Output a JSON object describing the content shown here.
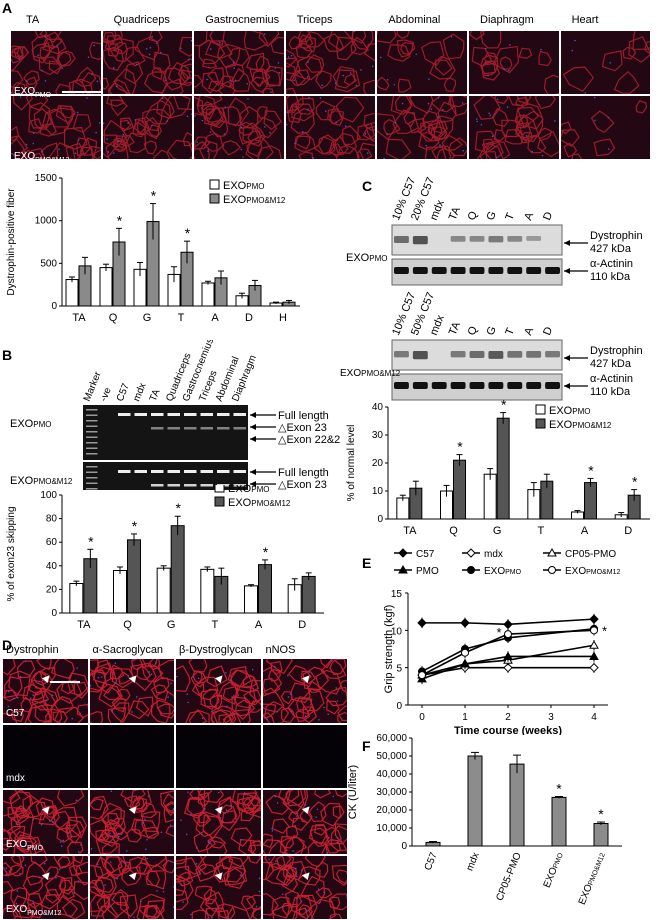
{
  "panelA": {
    "label": "A",
    "columns": [
      "TA",
      "Quadriceps",
      "Gastrocnemius",
      "Triceps",
      "Abdominal",
      "Diaphragm",
      "Heart"
    ],
    "rows": [
      "EXO",
      "EXO"
    ],
    "row_subs": [
      "PMO",
      "PMO&M12"
    ],
    "tile_color": "#9e1c2c",
    "chart_data": {
      "type": "bar",
      "categories": [
        "TA",
        "Q",
        "G",
        "T",
        "A",
        "D",
        "H"
      ],
      "ylabel": "Dystrophin-positive fiber",
      "ylim": [
        0,
        1500
      ],
      "yticks": [
        0,
        500,
        1000,
        1500
      ],
      "series": [
        {
          "name": "EXOPMO",
          "values": [
            310,
            450,
            430,
            370,
            270,
            120,
            35
          ],
          "errors": [
            30,
            40,
            80,
            90,
            20,
            30,
            10
          ],
          "color": "#ffffff"
        },
        {
          "name": "EXOPMO&M12",
          "values": [
            470,
            750,
            990,
            630,
            330,
            240,
            45
          ],
          "errors": [
            100,
            160,
            210,
            130,
            80,
            60,
            20
          ],
          "color": "#8a8a8a"
        }
      ],
      "significance": [
        "",
        "*",
        "*",
        "*",
        "",
        "",
        ""
      ]
    }
  },
  "panelB": {
    "label": "B",
    "lanes": [
      "Marker",
      "-ve",
      "C57",
      "mdx",
      "TA",
      "Quadriceps",
      "Gastrocnemius",
      "Triceps",
      "Abdominal",
      "Diaphragm"
    ],
    "row_labels": [
      "EXO",
      "EXO"
    ],
    "row_subs": [
      "PMO",
      "PMO&M12"
    ],
    "bands_top": [
      "Full length",
      "△Exon 23",
      "△Exon 22&23"
    ],
    "bands_bottom": [
      "Full length",
      "△Exon 23",
      "△Exon 22&23"
    ],
    "chart_data": {
      "type": "bar",
      "categories": [
        "TA",
        "Q",
        "G",
        "T",
        "A",
        "D"
      ],
      "ylabel": "% of exon23 skipping",
      "ylim": [
        0,
        100
      ],
      "yticks": [
        0,
        20,
        40,
        60,
        80,
        100
      ],
      "series": [
        {
          "name": "EXOPMO",
          "values": [
            25,
            36,
            38,
            37,
            23,
            24
          ],
          "errors": [
            2,
            3,
            2,
            2,
            1,
            5
          ],
          "color": "#ffffff"
        },
        {
          "name": "EXOPMO&M12",
          "values": [
            46,
            62,
            74,
            31,
            41,
            31
          ],
          "errors": [
            8,
            5,
            8,
            7,
            4,
            3
          ],
          "color": "#555555"
        }
      ],
      "significance": [
        "*",
        "*",
        "*",
        "",
        "*",
        ""
      ]
    }
  },
  "panelC": {
    "label": "C",
    "blot1_lanes": [
      "10% C57",
      "20% C57",
      "mdx",
      "TA",
      "Q",
      "G",
      "T",
      "A",
      "D"
    ],
    "blot2_lanes": [
      "10% C57",
      "50% C57",
      "mdx",
      "TA",
      "Q",
      "G",
      "T",
      "A",
      "D"
    ],
    "row1": "EXO",
    "row1_sub": "PMO",
    "row2": "EXO",
    "row2_sub": "PMO&M12",
    "dystrophin": "Dystrophin",
    "dystrophin_kda": "427 kDa",
    "actinin": "α-Actinin",
    "actinin_kda": "110 kDa",
    "chart_data": {
      "type": "bar",
      "categories": [
        "TA",
        "Q",
        "G",
        "T",
        "A",
        "D"
      ],
      "ylabel": "% of normal level",
      "ylim": [
        0,
        40
      ],
      "yticks": [
        0,
        10,
        20,
        30,
        40
      ],
      "series": [
        {
          "name": "EXOPMO",
          "values": [
            7.5,
            10,
            16,
            10.5,
            2.5,
            1.5
          ],
          "errors": [
            1,
            2,
            2,
            2.5,
            0.5,
            0.8
          ],
          "color": "#ffffff"
        },
        {
          "name": "EXOPMO&M12",
          "values": [
            11,
            21,
            36,
            13.5,
            13,
            8.5
          ],
          "errors": [
            2.5,
            2,
            2,
            2.5,
            1.5,
            2
          ],
          "color": "#555555"
        }
      ],
      "significance": [
        "",
        "*",
        "*",
        "",
        "*",
        "*"
      ]
    }
  },
  "panelD": {
    "label": "D",
    "columns": [
      "Dystrophin",
      "α-Sacroglycan",
      "β-Dystroglycan",
      "nNOS"
    ],
    "rows": [
      "C57",
      "mdx",
      "EXO",
      "EXO"
    ],
    "row_subs": [
      "",
      "",
      "PMO",
      "PMO&M12"
    ]
  },
  "panelE": {
    "label": "E",
    "legend": [
      "C57",
      "mdx",
      "CP05-PMO",
      "PMO",
      "EXOPMO",
      "EXOPMO&M12"
    ],
    "chart_data": {
      "type": "line",
      "x": [
        0,
        1,
        2,
        4
      ],
      "xlabel": "Time course (weeks)",
      "ylabel": "Grip strength (kgf)",
      "ylim": [
        0,
        15
      ],
      "yticks": [
        0,
        5,
        10,
        15
      ],
      "xticks": [
        0,
        1,
        2,
        3,
        4
      ],
      "series": [
        {
          "name": "C57",
          "marker": "diamond-filled",
          "values": [
            11,
            11,
            10.8,
            11.5
          ]
        },
        {
          "name": "mdx",
          "marker": "diamond-open",
          "values": [
            4,
            5,
            5,
            5
          ]
        },
        {
          "name": "CP05-PMO",
          "marker": "triangle-open",
          "values": [
            4,
            5.5,
            6,
            8
          ]
        },
        {
          "name": "PMO",
          "marker": "triangle-filled",
          "values": [
            3.5,
            5.5,
            6.5,
            6.5
          ]
        },
        {
          "name": "EXOPMO",
          "marker": "circle-filled",
          "values": [
            4.5,
            7.5,
            9,
            10.2
          ]
        },
        {
          "name": "EXOPMO&M12",
          "marker": "circle-open",
          "values": [
            4,
            7,
            9.5,
            10
          ]
        }
      ],
      "significance_label": "*"
    }
  },
  "panelF": {
    "label": "F",
    "chart_data": {
      "type": "bar",
      "categories": [
        "C57",
        "mdx",
        "CP05-PMO",
        "EXOPMO",
        "EXOPMO&M12"
      ],
      "ylabel": "CK (U/liter)",
      "ylim": [
        0,
        60000
      ],
      "yticks": [
        "0",
        "10,000",
        "20,000",
        "30,000",
        "40,000",
        "50,000",
        "60,000"
      ],
      "values": [
        2000,
        50000,
        45500,
        27000,
        12500
      ],
      "errors": [
        500,
        2000,
        5000,
        500,
        800
      ],
      "significance": [
        "",
        "",
        "",
        "*",
        "*"
      ],
      "color": "#8c8c8c"
    }
  }
}
